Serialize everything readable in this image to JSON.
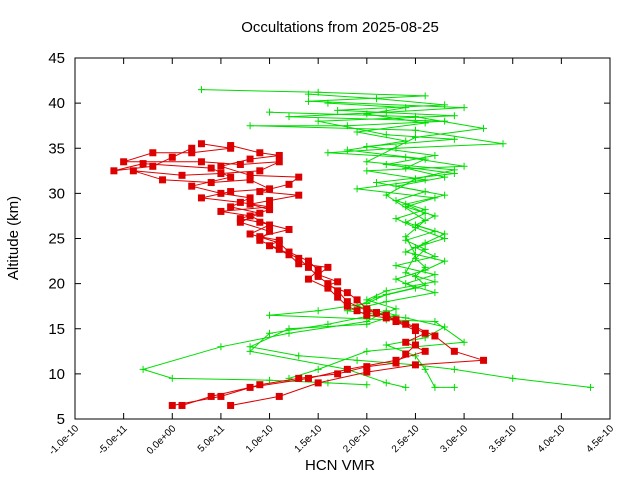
{
  "chart_data": {
    "type": "line",
    "title": "Occultations from 2025-08-25",
    "xlabel": "HCN VMR",
    "ylabel": "Altitude (km)",
    "xlim": [
      -1e-10,
      4.5e-10
    ],
    "ylim": [
      5,
      45
    ],
    "x_ticks": [
      -1e-10,
      -5e-11,
      0.0,
      5e-11,
      1e-10,
      1.5e-10,
      2e-10,
      2.5e-10,
      3e-10,
      3.5e-10,
      4e-10,
      4.5e-10
    ],
    "x_tick_labels": [
      "-1.0e-10",
      "-5.0e-11",
      "0.0e+00",
      "5.0e-11",
      "1.0e-10",
      "1.5e-10",
      "2.0e-10",
      "2.5e-10",
      "3.0e-10",
      "3.5e-10",
      "4.0e-10",
      "4.5e-10"
    ],
    "y_ticks": [
      5,
      10,
      15,
      20,
      25,
      30,
      35,
      40,
      45
    ],
    "y_tick_labels": [
      "5",
      "10",
      "15",
      "20",
      "25",
      "30",
      "35",
      "40",
      "45"
    ],
    "grid": false,
    "legend": "none",
    "series": [
      {
        "color": "#00dd00",
        "marker": "plus",
        "points": [
          [
            3e-11,
            41.5
          ],
          [
            1.5e-10,
            41.2
          ],
          [
            2.6e-10,
            40.8
          ],
          [
            1.4e-10,
            40.2
          ],
          [
            3e-10,
            39.5
          ],
          [
            2.2e-10,
            39.0
          ],
          [
            1.2e-10,
            38.5
          ],
          [
            2.8e-10,
            38.0
          ],
          [
            1.8e-10,
            37.5
          ],
          [
            8e-11,
            37.5
          ],
          [
            2.5e-10,
            37.0
          ],
          [
            3.4e-10,
            35.5
          ],
          [
            2.3e-10,
            35.0
          ],
          [
            1.6e-10,
            34.5
          ],
          [
            2.4e-10,
            34.0
          ],
          [
            3e-10,
            33.0
          ],
          [
            2e-10,
            32.5
          ],
          [
            2.6e-10,
            31.5
          ],
          [
            1.9e-10,
            30.5
          ],
          [
            2.7e-10,
            29.5
          ],
          [
            2.4e-10,
            28.5
          ],
          [
            2.7e-10,
            27.5
          ],
          [
            2.5e-10,
            26.5
          ],
          [
            2.8e-10,
            25.5
          ],
          [
            2.6e-10,
            24.5
          ],
          [
            2.4e-10,
            23.5
          ],
          [
            2.8e-10,
            22.5
          ],
          [
            2.6e-10,
            21.5
          ],
          [
            2.3e-10,
            20.5
          ],
          [
            2.5e-10,
            19.5
          ],
          [
            2.1e-10,
            18.5
          ],
          [
            1.9e-10,
            17.5
          ],
          [
            2.3e-10,
            16.5
          ],
          [
            2e-10,
            15.5
          ],
          [
            1.2e-10,
            15.0
          ],
          [
            8e-11,
            13.0
          ],
          [
            1.3e-10,
            12.0
          ],
          [
            1.9e-10,
            11.5
          ],
          [
            2.5e-10,
            11.0
          ],
          [
            2.9e-10,
            10.5
          ],
          [
            3.5e-10,
            9.5
          ],
          [
            4.3e-10,
            8.5
          ]
        ]
      },
      {
        "color": "#00dd00",
        "marker": "plus",
        "points": [
          [
            1.4e-10,
            41.0
          ],
          [
            2.1e-10,
            40.5
          ],
          [
            2.8e-10,
            39.8
          ],
          [
            1.7e-10,
            39.2
          ],
          [
            2.9e-10,
            38.6
          ],
          [
            1.5e-10,
            38.0
          ],
          [
            2.2e-10,
            36.5
          ],
          [
            2.9e-10,
            36.0
          ],
          [
            2e-10,
            35.2
          ],
          [
            2.7e-10,
            34.2
          ],
          [
            2.2e-10,
            33.2
          ],
          [
            2.9e-10,
            32.2
          ],
          [
            2.1e-10,
            31.2
          ],
          [
            2.6e-10,
            30.2
          ],
          [
            2.3e-10,
            29.2
          ],
          [
            2.6e-10,
            28.2
          ],
          [
            2.3e-10,
            27.2
          ],
          [
            2.5e-10,
            26.2
          ],
          [
            2.8e-10,
            25.0
          ],
          [
            2.5e-10,
            24.0
          ],
          [
            2.7e-10,
            23.0
          ],
          [
            2.3e-10,
            22.0
          ],
          [
            2.7e-10,
            21.0
          ],
          [
            2.4e-10,
            20.0
          ],
          [
            2.7e-10,
            19.0
          ],
          [
            2.2e-10,
            18.0
          ],
          [
            1.8e-10,
            17.0
          ],
          [
            2.4e-10,
            16.2
          ],
          [
            2.8e-10,
            15.2
          ],
          [
            2.6e-10,
            14.0
          ],
          [
            2.2e-10,
            13.2
          ],
          [
            2.5e-10,
            12.0
          ],
          [
            2.6e-10,
            10.5
          ],
          [
            2.7e-10,
            8.5
          ],
          [
            2.9e-10,
            8.5
          ]
        ]
      },
      {
        "color": "#00dd00",
        "marker": "plus",
        "points": [
          [
            1.6e-10,
            40.0
          ],
          [
            2.4e-10,
            39.5
          ],
          [
            2e-10,
            38.8
          ],
          [
            2.6e-10,
            37.8
          ],
          [
            1.9e-10,
            36.8
          ],
          [
            2.4e-10,
            35.8
          ],
          [
            1.8e-10,
            34.8
          ],
          [
            2.6e-10,
            33.8
          ],
          [
            2.4e-10,
            32.8
          ],
          [
            2.8e-10,
            31.8
          ],
          [
            2.3e-10,
            30.8
          ],
          [
            2.8e-10,
            29.8
          ],
          [
            2.4e-10,
            28.8
          ],
          [
            2.6e-10,
            27.8
          ],
          [
            2.4e-10,
            26.8
          ],
          [
            2.7e-10,
            25.8
          ],
          [
            2.4e-10,
            24.8
          ],
          [
            2.6e-10,
            23.8
          ],
          [
            2.5e-10,
            22.8
          ],
          [
            2.6e-10,
            21.8
          ],
          [
            2.5e-10,
            20.8
          ],
          [
            2.6e-10,
            19.8
          ],
          [
            2.2e-10,
            18.8
          ],
          [
            2e-10,
            17.8
          ],
          [
            1.5e-10,
            17.0
          ],
          [
            1e-10,
            16.5
          ],
          [
            2.2e-10,
            16.0
          ],
          [
            2.7e-10,
            15.8
          ],
          [
            3e-10,
            13.5
          ],
          [
            2e-10,
            12.5
          ],
          [
            1.5e-10,
            10.5
          ],
          [
            1.2e-10,
            9.5
          ]
        ]
      },
      {
        "color": "#00dd00",
        "marker": "plus",
        "points": [
          [
            1e-10,
            39.0
          ],
          [
            2.5e-10,
            38.5
          ],
          [
            3.2e-10,
            37.2
          ],
          [
            2.5e-10,
            36.2
          ],
          [
            2e-10,
            33.5
          ],
          [
            2.9e-10,
            32.6
          ],
          [
            2.5e-10,
            31.6
          ],
          [
            2.2e-10,
            29.8
          ],
          [
            2.6e-10,
            27.0
          ],
          [
            2.4e-10,
            25.2
          ],
          [
            2.5e-10,
            23.2
          ],
          [
            2.4e-10,
            21.2
          ],
          [
            2.7e-10,
            20.2
          ],
          [
            2.2e-10,
            19.2
          ],
          [
            2e-10,
            18.2
          ],
          [
            2.3e-10,
            17.2
          ],
          [
            2.2e-10,
            16.8
          ],
          [
            1.6e-10,
            15.5
          ],
          [
            1e-10,
            14.5
          ],
          [
            8e-11,
            12.5
          ],
          [
            1.8e-10,
            10.5
          ],
          [
            2.2e-10,
            9.0
          ],
          [
            2.4e-10,
            8.5
          ]
        ]
      },
      {
        "color": "#00dd00",
        "marker": "plus",
        "points": [
          [
            2.2e-10,
            17.0
          ],
          [
            2e-10,
            15.8
          ],
          [
            1.2e-10,
            14.5
          ],
          [
            5e-11,
            13.0
          ],
          [
            -3e-11,
            10.5
          ],
          [
            0.0,
            9.5
          ],
          [
            1e-10,
            9.3
          ],
          [
            1.6e-10,
            9.0
          ],
          [
            2e-10,
            8.8
          ]
        ]
      },
      {
        "color": "#dd0000",
        "marker": "square",
        "points": [
          [
            3e-11,
            35.5
          ],
          [
            6e-11,
            35.0
          ],
          [
            2e-11,
            34.5
          ],
          [
            -2e-11,
            34.5
          ],
          [
            -5e-11,
            33.5
          ],
          [
            3e-11,
            33.5
          ],
          [
            7e-11,
            33.2
          ],
          [
            1.1e-10,
            33.5
          ],
          [
            9e-11,
            32.5
          ],
          [
            5e-11,
            32.2
          ],
          [
            1e-11,
            32.0
          ],
          [
            -4e-11,
            32.5
          ],
          [
            -1e-11,
            31.5
          ],
          [
            4e-11,
            31.2
          ],
          [
            8e-11,
            31.5
          ],
          [
            1e-10,
            30.5
          ],
          [
            6e-11,
            30.2
          ],
          [
            3e-11,
            29.5
          ],
          [
            7e-11,
            29.0
          ],
          [
            1e-10,
            28.5
          ],
          [
            5e-11,
            28.0
          ],
          [
            8e-11,
            27.5
          ],
          [
            1e-10,
            26.5
          ],
          [
            8e-11,
            25.5
          ],
          [
            1.1e-10,
            24.5
          ],
          [
            1.2e-10,
            23.5
          ],
          [
            1.4e-10,
            22.5
          ],
          [
            1.5e-10,
            21.5
          ],
          [
            1.4e-10,
            20.5
          ],
          [
            1.6e-10,
            19.5
          ],
          [
            1.7e-10,
            18.5
          ],
          [
            1.8e-10,
            17.5
          ],
          [
            1.9e-10,
            17.0
          ],
          [
            2e-10,
            16.5
          ],
          [
            2.2e-10,
            16.2
          ],
          [
            2.4e-10,
            15.5
          ],
          [
            2.6e-10,
            14.5
          ],
          [
            2.4e-10,
            13.5
          ],
          [
            2.6e-10,
            12.5
          ],
          [
            2.3e-10,
            11.5
          ],
          [
            1.8e-10,
            10.5
          ],
          [
            1.4e-10,
            9.5
          ],
          [
            8e-11,
            8.5
          ],
          [
            4e-11,
            7.5
          ],
          [
            1e-11,
            6.5
          ]
        ]
      },
      {
        "color": "#dd0000",
        "marker": "square",
        "points": [
          [
            6e-11,
            35.3
          ],
          [
            9e-11,
            34.5
          ],
          [
            1.1e-10,
            34.2
          ],
          [
            8e-11,
            33.8
          ],
          [
            5e-11,
            33.0
          ],
          [
            8e-11,
            32.0
          ],
          [
            1.3e-10,
            31.8
          ],
          [
            1.2e-10,
            31.0
          ],
          [
            9e-11,
            30.2
          ],
          [
            1.3e-10,
            29.8
          ],
          [
            1e-10,
            29.2
          ],
          [
            8e-11,
            28.8
          ],
          [
            1e-10,
            28.2
          ],
          [
            7e-11,
            27.2
          ],
          [
            9e-11,
            26.8
          ],
          [
            1.2e-10,
            26.0
          ],
          [
            9e-11,
            25.2
          ],
          [
            1.1e-10,
            24.8
          ],
          [
            1e-10,
            24.2
          ],
          [
            1.2e-10,
            23.2
          ],
          [
            1.3e-10,
            22.2
          ],
          [
            1.6e-10,
            21.8
          ],
          [
            1.5e-10,
            21.0
          ],
          [
            1.7e-10,
            20.2
          ],
          [
            1.6e-10,
            19.8
          ],
          [
            1.8e-10,
            19.0
          ],
          [
            1.9e-10,
            18.2
          ],
          [
            2e-10,
            17.2
          ],
          [
            2.1e-10,
            16.8
          ],
          [
            2.3e-10,
            16.0
          ],
          [
            2.5e-10,
            15.2
          ],
          [
            2.7e-10,
            14.2
          ],
          [
            2.9e-10,
            12.5
          ],
          [
            3.2e-10,
            11.5
          ],
          [
            2.5e-10,
            11.0
          ],
          [
            2e-10,
            10.2
          ],
          [
            1.5e-10,
            9.0
          ],
          [
            1.1e-10,
            7.5
          ],
          [
            6e-11,
            6.5
          ]
        ]
      },
      {
        "color": "#dd0000",
        "marker": "square",
        "points": [
          [
            2e-11,
            35.0
          ],
          [
            0.0,
            34.0
          ],
          [
            -2e-11,
            33.0
          ],
          [
            -6e-11,
            32.5
          ],
          [
            -3e-11,
            33.3
          ],
          [
            4e-11,
            32.8
          ],
          [
            6e-11,
            31.8
          ],
          [
            2e-11,
            30.8
          ],
          [
            5e-11,
            30.0
          ],
          [
            8e-11,
            29.5
          ],
          [
            6e-11,
            28.5
          ],
          [
            9e-11,
            27.8
          ],
          [
            7e-11,
            26.8
          ],
          [
            1e-10,
            25.8
          ],
          [
            9e-11,
            24.8
          ],
          [
            1.1e-10,
            23.8
          ],
          [
            1.3e-10,
            22.8
          ],
          [
            1.4e-10,
            21.8
          ],
          [
            1.5e-10,
            20.8
          ],
          [
            1.6e-10,
            20.0
          ],
          [
            1.7e-10,
            19.2
          ],
          [
            1.8e-10,
            18.0
          ],
          [
            2e-10,
            17.0
          ],
          [
            2.2e-10,
            16.5
          ],
          [
            2.3e-10,
            15.8
          ],
          [
            2.5e-10,
            14.8
          ],
          [
            2.5e-10,
            13.2
          ],
          [
            2.4e-10,
            12.2
          ],
          [
            2.3e-10,
            11.2
          ],
          [
            2e-10,
            10.8
          ],
          [
            1.7e-10,
            10.0
          ],
          [
            1.3e-10,
            9.5
          ],
          [
            9e-11,
            8.8
          ],
          [
            5e-11,
            7.5
          ],
          [
            0.0,
            6.5
          ]
        ]
      }
    ]
  }
}
